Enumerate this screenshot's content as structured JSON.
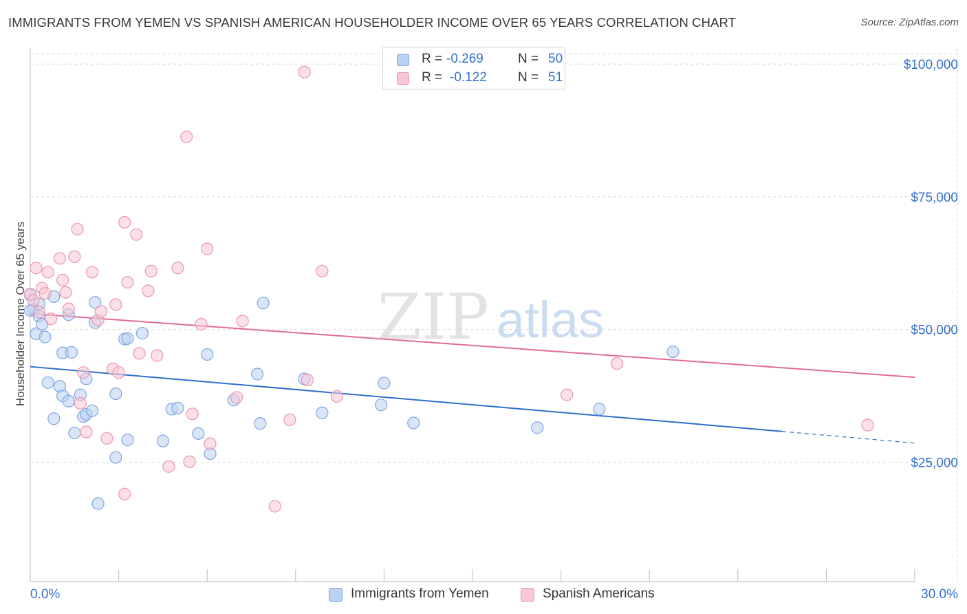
{
  "header": {
    "title": "IMMIGRANTS FROM YEMEN VS SPANISH AMERICAN HOUSEHOLDER INCOME OVER 65 YEARS CORRELATION CHART",
    "source": "Source: ZipAtlas.com"
  },
  "watermark": {
    "zip": "ZIP",
    "atlas": "atlas"
  },
  "legend_top": {
    "rows": [
      {
        "r_label": "R =",
        "r_value": "-0.269",
        "n_label": "N =",
        "n_value": "50"
      },
      {
        "r_label": "R =",
        "r_value": "-0.122",
        "n_label": "N =",
        "n_value": "51"
      }
    ]
  },
  "legend_bottom": {
    "items": [
      {
        "label": "Immigrants from Yemen"
      },
      {
        "label": "Spanish Americans"
      }
    ]
  },
  "colors": {
    "blue_fill": "#b9d1f3",
    "blue_stroke": "#7ea6de",
    "blue_line": "#2f6fcd",
    "pink_fill": "#f8c6d6",
    "pink_stroke": "#e996b2",
    "pink_line": "#e26b95",
    "axis_label": "#3370cc",
    "grid": "#d6d6d6"
  },
  "chart_data": {
    "type": "scatter",
    "title": "IMMIGRANTS FROM YEMEN VS SPANISH AMERICAN HOUSEHOLDER INCOME OVER 65 YEARS CORRELATION CHART",
    "xlabel": "",
    "ylabel": "Householder Income Over 65 years",
    "xlim": [
      0,
      30
    ],
    "ylim": [
      2500,
      103000
    ],
    "x_tick_labels": [
      "0.0%",
      "30.0%"
    ],
    "y_ticks": [
      25000,
      50000,
      75000,
      100000
    ],
    "y_tick_labels": [
      "$25,000",
      "$50,000",
      "$75,000",
      "$100,000"
    ],
    "grid": true,
    "legend_position": "top-center",
    "series": [
      {
        "name": "Immigrants from Yemen",
        "color": "#7ea6de",
        "r": -0.269,
        "n": 50,
        "trend": {
          "x0": 0,
          "y0": 43000,
          "x1": 25.5,
          "y1": 30800,
          "dashed_to_x": 30,
          "dashed_to_y": 28600
        },
        "points": [
          [
            0.0,
            56500
          ],
          [
            0.1,
            53800
          ],
          [
            0.2,
            49200
          ],
          [
            0.3,
            52500
          ],
          [
            0.3,
            54800
          ],
          [
            0.4,
            51000
          ],
          [
            0.5,
            48600
          ],
          [
            0.6,
            40000
          ],
          [
            0.8,
            33200
          ],
          [
            0.8,
            56200
          ],
          [
            1.0,
            39300
          ],
          [
            1.1,
            37500
          ],
          [
            1.1,
            45600
          ],
          [
            1.3,
            36500
          ],
          [
            1.3,
            52800
          ],
          [
            1.4,
            45700
          ],
          [
            1.5,
            30500
          ],
          [
            1.7,
            37700
          ],
          [
            1.8,
            33600
          ],
          [
            1.9,
            40700
          ],
          [
            1.9,
            34000
          ],
          [
            2.1,
            34700
          ],
          [
            2.2,
            55100
          ],
          [
            2.2,
            51300
          ],
          [
            2.3,
            17200
          ],
          [
            2.9,
            37900
          ],
          [
            2.9,
            25900
          ],
          [
            3.2,
            48200
          ],
          [
            3.3,
            48300
          ],
          [
            3.3,
            29200
          ],
          [
            3.8,
            49300
          ],
          [
            4.5,
            29000
          ],
          [
            4.8,
            35000
          ],
          [
            5.0,
            35200
          ],
          [
            5.7,
            30400
          ],
          [
            6.0,
            45300
          ],
          [
            6.1,
            26600
          ],
          [
            6.9,
            36700
          ],
          [
            7.7,
            41600
          ],
          [
            7.8,
            32300
          ],
          [
            7.9,
            55000
          ],
          [
            9.3,
            40700
          ],
          [
            9.9,
            34300
          ],
          [
            11.9,
            35800
          ],
          [
            12.0,
            39900
          ],
          [
            13.0,
            32400
          ],
          [
            17.2,
            31500
          ],
          [
            19.3,
            35000
          ],
          [
            21.8,
            45800
          ],
          [
            0.0,
            53600
          ]
        ]
      },
      {
        "name": "Spanish Americans",
        "color": "#e996b2",
        "r": -0.122,
        "n": 51,
        "trend": {
          "x0": 0,
          "y0": 53000,
          "x1": 30,
          "y1": 41000
        },
        "points": [
          [
            0.0,
            56700
          ],
          [
            0.1,
            55500
          ],
          [
            0.2,
            61600
          ],
          [
            0.3,
            53300
          ],
          [
            0.4,
            57800
          ],
          [
            0.5,
            56800
          ],
          [
            0.6,
            60800
          ],
          [
            0.7,
            52000
          ],
          [
            1.0,
            63400
          ],
          [
            1.1,
            59300
          ],
          [
            1.2,
            57000
          ],
          [
            1.3,
            53900
          ],
          [
            1.5,
            63700
          ],
          [
            1.6,
            68900
          ],
          [
            1.7,
            36100
          ],
          [
            1.8,
            41900
          ],
          [
            1.9,
            30700
          ],
          [
            2.1,
            60800
          ],
          [
            2.3,
            51800
          ],
          [
            2.4,
            53400
          ],
          [
            2.6,
            29500
          ],
          [
            2.8,
            42600
          ],
          [
            2.9,
            54700
          ],
          [
            3.0,
            41900
          ],
          [
            3.2,
            70200
          ],
          [
            3.2,
            19000
          ],
          [
            3.3,
            58900
          ],
          [
            3.6,
            67900
          ],
          [
            3.7,
            45500
          ],
          [
            4.0,
            57300
          ],
          [
            4.1,
            61000
          ],
          [
            4.3,
            45100
          ],
          [
            4.7,
            24200
          ],
          [
            5.0,
            61600
          ],
          [
            5.3,
            86300
          ],
          [
            5.4,
            25100
          ],
          [
            5.5,
            34100
          ],
          [
            5.8,
            51000
          ],
          [
            6.0,
            65200
          ],
          [
            6.1,
            28500
          ],
          [
            7.0,
            37200
          ],
          [
            7.2,
            51600
          ],
          [
            8.3,
            16700
          ],
          [
            8.8,
            33000
          ],
          [
            9.3,
            98500
          ],
          [
            9.4,
            40500
          ],
          [
            9.9,
            61000
          ],
          [
            10.4,
            37400
          ],
          [
            18.2,
            37700
          ],
          [
            19.9,
            43600
          ],
          [
            28.4,
            32000
          ]
        ]
      }
    ]
  }
}
